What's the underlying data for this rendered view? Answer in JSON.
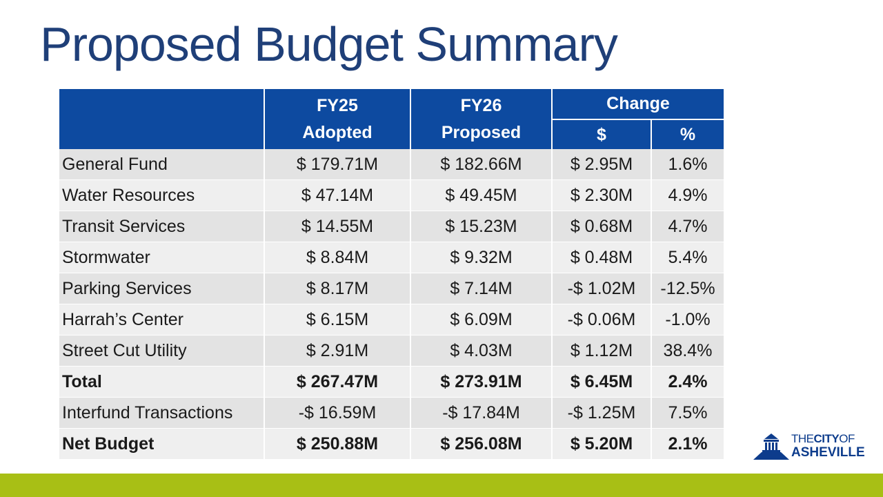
{
  "title": "Proposed Budget Summary",
  "table": {
    "headers": {
      "fy25": [
        "FY25",
        "Adopted"
      ],
      "fy26": [
        "FY26",
        "Proposed"
      ],
      "change": "Change",
      "change_dollar": "$",
      "change_pct": "%"
    },
    "rows": [
      {
        "name": "General Fund",
        "fy25": "$ 179.71M",
        "fy26": "$ 182.66M",
        "chg": "$ 2.95M",
        "pct": "1.6%",
        "bold": false
      },
      {
        "name": "Water Resources",
        "fy25": "$ 47.14M",
        "fy26": "$ 49.45M",
        "chg": "$ 2.30M",
        "pct": "4.9%",
        "bold": false
      },
      {
        "name": "Transit Services",
        "fy25": "$ 14.55M",
        "fy26": "$ 15.23M",
        "chg": "$ 0.68M",
        "pct": "4.7%",
        "bold": false
      },
      {
        "name": "Stormwater",
        "fy25": "$ 8.84M",
        "fy26": "$ 9.32M",
        "chg": "$ 0.48M",
        "pct": "5.4%",
        "bold": false
      },
      {
        "name": "Parking Services",
        "fy25": "$ 8.17M",
        "fy26": "$ 7.14M",
        "chg": "-$ 1.02M",
        "pct": "-12.5%",
        "bold": false
      },
      {
        "name": "Harrah’s Center",
        "fy25": "$ 6.15M",
        "fy26": "$ 6.09M",
        "chg": "-$ 0.06M",
        "pct": "-1.0%",
        "bold": false
      },
      {
        "name": "Street Cut Utility",
        "fy25": "$ 2.91M",
        "fy26": "$ 4.03M",
        "chg": "$ 1.12M",
        "pct": "38.4%",
        "bold": false
      },
      {
        "name": "Total",
        "fy25": "$ 267.47M",
        "fy26": "$ 273.91M",
        "chg": "$ 6.45M",
        "pct": "2.4%",
        "bold": true
      },
      {
        "name": "Interfund Transactions",
        "fy25": "-$ 16.59M",
        "fy26": "-$ 17.84M",
        "chg": "-$ 1.25M",
        "pct": "7.5%",
        "bold": false
      },
      {
        "name": "Net Budget",
        "fy25": "$ 250.88M",
        "fy26": "$ 256.08M",
        "chg": "$ 5.20M",
        "pct": "2.1%",
        "bold": true
      }
    ]
  },
  "logo": {
    "line1_the": "THE",
    "line1_city": "CITY",
    "line1_of": "OF",
    "line2": "ASHEVILLE",
    "icon": "city-hall-icon",
    "color": "#0d3c8c"
  },
  "colors": {
    "title": "#1f3f78",
    "header_bg": "#0d4aa0",
    "footer_bar": "#a8bf15"
  }
}
